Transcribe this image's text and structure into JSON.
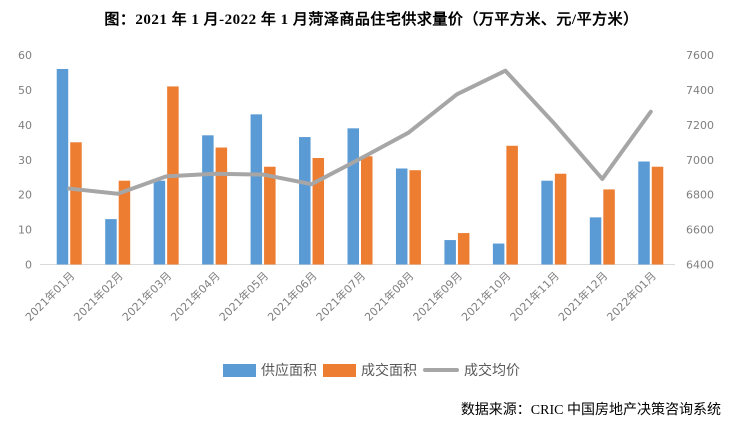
{
  "title": "图：2021 年 1 月-2022 年 1 月菏泽商品住宅供求量价（万平方米、元/平方米）",
  "source": "数据来源：CRIC 中国房地产决策咨询系统",
  "colors": {
    "supply_bar": "#5B9BD5",
    "deal_bar": "#ED7D31",
    "price_line": "#A6A6A6",
    "axis_text": "#7F7F7F",
    "baseline": "#D9D9D9"
  },
  "chart_data": {
    "type": "combo-bar-line",
    "title": "图：2021 年 1 月-2022 年 1 月菏泽商品住宅供求量价（万平方米、元/平方米）",
    "categories": [
      "2021年01月",
      "2021年02月",
      "2021年03月",
      "2021年04月",
      "2021年05月",
      "2021年06月",
      "2021年07月",
      "2021年08月",
      "2021年09月",
      "2021年10月",
      "2021年11月",
      "2021年12月",
      "2022年01月"
    ],
    "series": [
      {
        "name": "供应面积",
        "type": "bar",
        "axis": "left",
        "color": "#5B9BD5",
        "values": [
          56,
          13,
          24,
          37,
          43,
          36.5,
          39,
          27.5,
          7,
          6,
          24,
          13.5,
          29.5
        ]
      },
      {
        "name": "成交面积",
        "type": "bar",
        "axis": "left",
        "color": "#ED7D31",
        "values": [
          35,
          24,
          51,
          33.5,
          28,
          30.5,
          31,
          27,
          9,
          34,
          26,
          21.5,
          28
        ]
      },
      {
        "name": "成交均价",
        "type": "line",
        "axis": "right",
        "color": "#A6A6A6",
        "values": [
          6835,
          6805,
          6905,
          6920,
          6915,
          6860,
          7005,
          7155,
          7375,
          7510,
          7210,
          6890,
          7275
        ]
      }
    ],
    "left_axis": {
      "min": 0,
      "max": 60,
      "step": 10,
      "unit": "万平方米"
    },
    "right_axis": {
      "min": 6400,
      "max": 7600,
      "step": 200,
      "unit": "元/平方米"
    },
    "grid": false,
    "legend_position": "bottom"
  }
}
